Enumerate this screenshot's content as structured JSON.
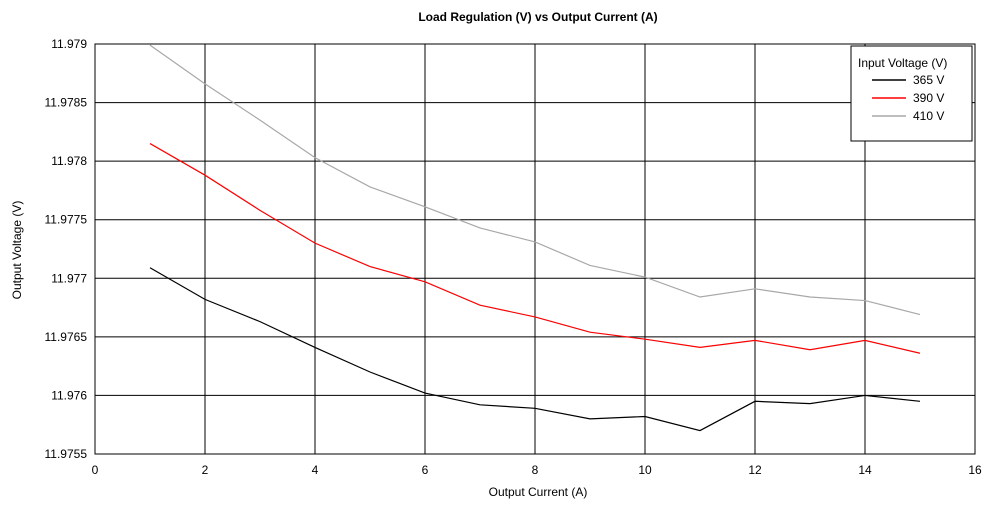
{
  "chart_data": {
    "type": "line",
    "title": "Load Regulation (V) vs Output Current (A)",
    "xlabel": "Output Current (A)",
    "ylabel": "Output Voltage (V)",
    "xlim": [
      0,
      16
    ],
    "ylim": [
      11.9755,
      11.979
    ],
    "x_ticks": [
      0,
      2,
      4,
      6,
      8,
      10,
      12,
      14,
      16
    ],
    "x_tick_labels": [
      "0",
      "2",
      "4",
      "6",
      "8",
      "10",
      "12",
      "14",
      "16"
    ],
    "y_ticks": [
      11.9755,
      11.976,
      11.9765,
      11.977,
      11.9775,
      11.978,
      11.9785,
      11.979
    ],
    "y_tick_labels": [
      "11.9755",
      "11.976",
      "11.9765",
      "11.977",
      "11.9775",
      "11.978",
      "11.9785",
      "11.979"
    ],
    "grid": true,
    "legend": {
      "title": "Input Voltage (V)",
      "position": "top-right"
    },
    "x": [
      1,
      2,
      3,
      4,
      5,
      6,
      7,
      8,
      9,
      10,
      11,
      12,
      13,
      14,
      15
    ],
    "series": [
      {
        "name": "365 V",
        "color": "#000000",
        "values": [
          11.97709,
          11.97682,
          11.97663,
          11.97641,
          11.9762,
          11.97602,
          11.97592,
          11.97589,
          11.9758,
          11.97582,
          11.9757,
          11.97595,
          11.97593,
          11.976,
          11.97595
        ]
      },
      {
        "name": "390 V",
        "color": "#ff0000",
        "values": [
          11.97815,
          11.97788,
          11.97758,
          11.9773,
          11.9771,
          11.97697,
          11.97677,
          11.97667,
          11.97654,
          11.97648,
          11.97641,
          11.97647,
          11.97639,
          11.97647,
          11.97636
        ]
      },
      {
        "name": "410 V",
        "color": "#a8a8a8",
        "values": [
          11.97899,
          11.97866,
          11.97835,
          11.97803,
          11.97778,
          11.97761,
          11.97743,
          11.97731,
          11.97711,
          11.97701,
          11.97684,
          11.97691,
          11.97684,
          11.97681,
          11.97669
        ]
      }
    ]
  }
}
